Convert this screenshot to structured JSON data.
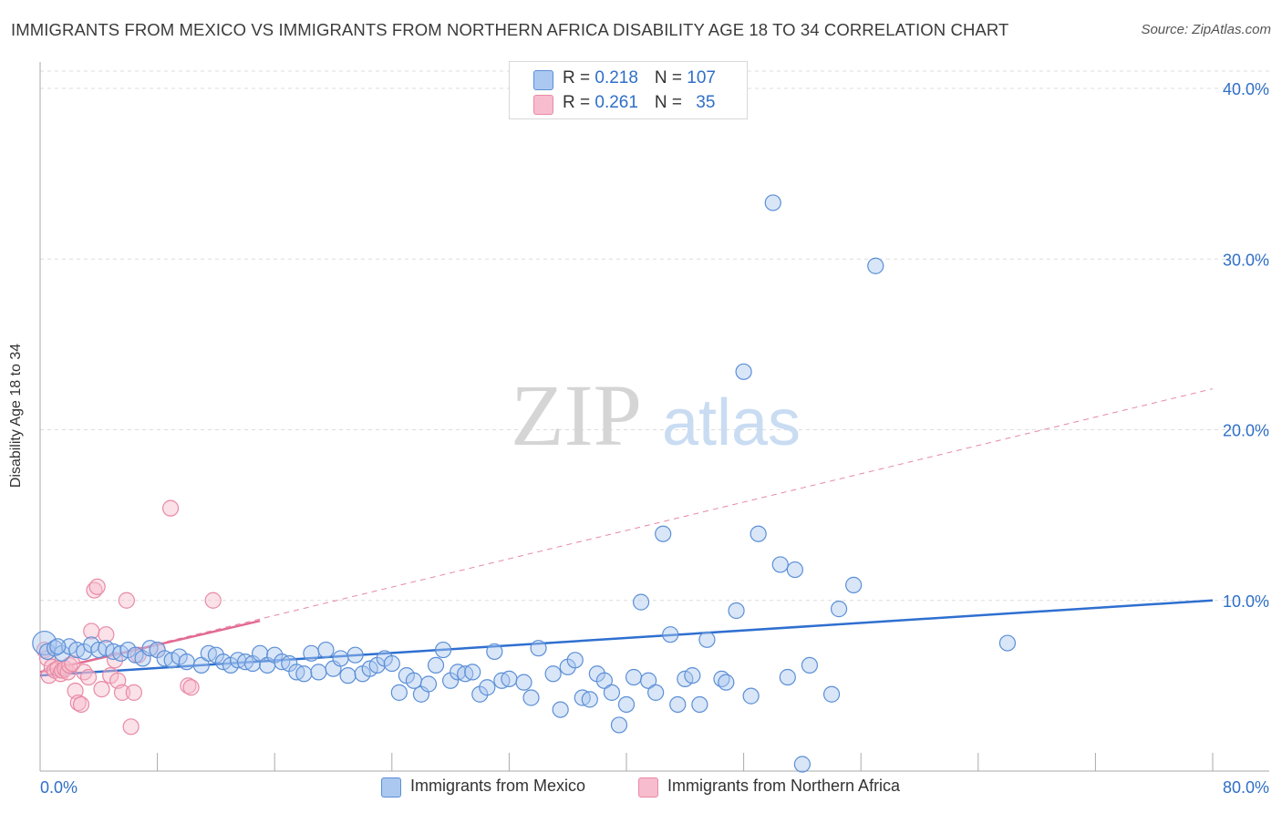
{
  "title": "IMMIGRANTS FROM MEXICO VS IMMIGRANTS FROM NORTHERN AFRICA DISABILITY AGE 18 TO 34 CORRELATION CHART",
  "source": "Source: ZipAtlas.com",
  "watermark": {
    "zip": "ZIP",
    "atlas": "atlas"
  },
  "legend": {
    "rows": [
      {
        "r_label": "R = ",
        "r_value": "0.218",
        "n_label": "N = ",
        "n_value": "107"
      },
      {
        "r_label": "R = ",
        "r_value": "0.261",
        "n_label": "N = ",
        "n_value": "35"
      }
    ]
  },
  "colors": {
    "mexico_fill": "#aac8f0",
    "mexico_stroke": "#5b8fd6",
    "mexico_line": "#2f6fd0",
    "africa_fill": "#f7bccd",
    "africa_stroke": "#e88aa6",
    "africa_line": "#e26a92",
    "axis_text": "#2f6fc7",
    "grid": "#dddddd"
  },
  "chart_data": {
    "type": "scatter",
    "title": "IMMIGRANTS FROM MEXICO VS IMMIGRANTS FROM NORTHERN AFRICA DISABILITY AGE 18 TO 34 CORRELATION CHART",
    "xlabel": "",
    "ylabel": "Disability Age 18 to 34",
    "xlim": [
      0,
      80
    ],
    "ylim": [
      0,
      40
    ],
    "x_tick_labels": [
      "0.0%",
      "80.0%"
    ],
    "y_ticks": [
      10,
      20,
      30,
      40
    ],
    "y_tick_labels": [
      "10.0%",
      "20.0%",
      "30.0%",
      "40.0%"
    ],
    "grid": true,
    "series": [
      {
        "name": "Immigrants from Mexico",
        "r": 0.218,
        "n": 107,
        "trend": {
          "x": [
            0,
            80
          ],
          "y": [
            5.6,
            10.0
          ],
          "style": "solid"
        },
        "points": [
          [
            0.3,
            7.5
          ],
          [
            0.5,
            7.0
          ],
          [
            1.0,
            7.2
          ],
          [
            1.5,
            6.9
          ],
          [
            2.0,
            7.3
          ],
          [
            2.5,
            7.1
          ],
          [
            3.0,
            7.0
          ],
          [
            3.5,
            7.4
          ],
          [
            4.0,
            7.1
          ],
          [
            4.5,
            7.2
          ],
          [
            5.0,
            7.0
          ],
          [
            5.5,
            6.9
          ],
          [
            6.0,
            7.1
          ],
          [
            6.5,
            6.8
          ],
          [
            7.0,
            6.6
          ],
          [
            7.5,
            7.2
          ],
          [
            8.0,
            7.1
          ],
          [
            8.5,
            6.6
          ],
          [
            9.0,
            6.5
          ],
          [
            9.5,
            6.7
          ],
          [
            10.0,
            6.4
          ],
          [
            11.0,
            6.2
          ],
          [
            11.5,
            6.9
          ],
          [
            12.0,
            6.8
          ],
          [
            12.5,
            6.4
          ],
          [
            13.0,
            6.2
          ],
          [
            13.5,
            6.5
          ],
          [
            14.0,
            6.4
          ],
          [
            14.5,
            6.3
          ],
          [
            15.0,
            6.9
          ],
          [
            15.5,
            6.2
          ],
          [
            16.0,
            6.8
          ],
          [
            16.5,
            6.4
          ],
          [
            17.0,
            6.3
          ],
          [
            17.5,
            5.8
          ],
          [
            18.0,
            5.7
          ],
          [
            18.5,
            6.9
          ],
          [
            19.0,
            5.8
          ],
          [
            19.5,
            7.1
          ],
          [
            20.0,
            6.0
          ],
          [
            20.5,
            6.6
          ],
          [
            21.0,
            5.6
          ],
          [
            21.5,
            6.8
          ],
          [
            22.0,
            5.7
          ],
          [
            22.5,
            6.0
          ],
          [
            23.0,
            6.2
          ],
          [
            23.5,
            6.6
          ],
          [
            24.0,
            6.3
          ],
          [
            24.5,
            4.6
          ],
          [
            25.0,
            5.6
          ],
          [
            25.5,
            5.3
          ],
          [
            26.0,
            4.5
          ],
          [
            26.5,
            5.1
          ],
          [
            27.0,
            6.2
          ],
          [
            27.5,
            7.1
          ],
          [
            28.0,
            5.3
          ],
          [
            28.5,
            5.8
          ],
          [
            29.0,
            5.7
          ],
          [
            29.5,
            5.8
          ],
          [
            30.0,
            4.5
          ],
          [
            30.5,
            4.9
          ],
          [
            31.0,
            7.0
          ],
          [
            31.5,
            5.3
          ],
          [
            32.0,
            5.4
          ],
          [
            33.0,
            5.2
          ],
          [
            33.5,
            4.3
          ],
          [
            34.0,
            7.2
          ],
          [
            35.0,
            5.7
          ],
          [
            35.5,
            3.6
          ],
          [
            36.0,
            6.1
          ],
          [
            36.5,
            6.5
          ],
          [
            37.0,
            4.3
          ],
          [
            37.5,
            4.2
          ],
          [
            38.0,
            5.7
          ],
          [
            38.5,
            5.3
          ],
          [
            39.0,
            4.6
          ],
          [
            39.5,
            2.7
          ],
          [
            40.0,
            3.9
          ],
          [
            40.5,
            5.5
          ],
          [
            41.0,
            9.9
          ],
          [
            41.5,
            5.3
          ],
          [
            42.0,
            4.6
          ],
          [
            42.5,
            13.9
          ],
          [
            43.0,
            8.0
          ],
          [
            43.5,
            3.9
          ],
          [
            44.0,
            5.4
          ],
          [
            44.5,
            5.6
          ],
          [
            45.0,
            3.9
          ],
          [
            45.5,
            7.7
          ],
          [
            46.5,
            5.4
          ],
          [
            46.8,
            5.2
          ],
          [
            47.5,
            9.4
          ],
          [
            48.0,
            23.4
          ],
          [
            48.5,
            4.4
          ],
          [
            49.0,
            13.9
          ],
          [
            50.5,
            12.1
          ],
          [
            51.0,
            5.5
          ],
          [
            51.5,
            11.8
          ],
          [
            52.0,
            0.4
          ],
          [
            50.0,
            33.3
          ],
          [
            52.5,
            6.2
          ],
          [
            54.0,
            4.5
          ],
          [
            54.5,
            9.5
          ],
          [
            55.5,
            10.9
          ],
          [
            57.0,
            29.6
          ],
          [
            66.0,
            7.5
          ],
          [
            1.2,
            7.3
          ]
        ]
      },
      {
        "name": "Immigrants from Northern Africa",
        "r": 0.261,
        "n": 35,
        "trend_solid": {
          "x": [
            0,
            15
          ],
          "y": [
            5.8,
            8.8
          ]
        },
        "trend_dashed": {
          "x": [
            0,
            80
          ],
          "y": [
            5.8,
            22.4
          ]
        },
        "points": [
          [
            0.3,
            7.1
          ],
          [
            0.5,
            6.6
          ],
          [
            0.6,
            5.6
          ],
          [
            0.8,
            6.1
          ],
          [
            1.0,
            5.9
          ],
          [
            1.2,
            6.0
          ],
          [
            1.4,
            5.7
          ],
          [
            1.5,
            5.9
          ],
          [
            1.7,
            6.0
          ],
          [
            1.9,
            5.8
          ],
          [
            2.0,
            6.2
          ],
          [
            2.2,
            6.3
          ],
          [
            2.4,
            4.7
          ],
          [
            2.6,
            4.0
          ],
          [
            2.8,
            3.9
          ],
          [
            3.0,
            5.8
          ],
          [
            3.3,
            5.5
          ],
          [
            3.5,
            8.2
          ],
          [
            3.7,
            10.6
          ],
          [
            3.9,
            10.8
          ],
          [
            4.2,
            4.8
          ],
          [
            4.5,
            8.0
          ],
          [
            4.8,
            5.6
          ],
          [
            5.1,
            6.5
          ],
          [
            5.3,
            5.3
          ],
          [
            5.6,
            4.6
          ],
          [
            5.9,
            10.0
          ],
          [
            6.2,
            2.6
          ],
          [
            6.4,
            4.6
          ],
          [
            6.7,
            6.8
          ],
          [
            8.0,
            7.1
          ],
          [
            8.9,
            15.4
          ],
          [
            10.1,
            5.0
          ],
          [
            10.3,
            4.9
          ],
          [
            11.8,
            10.0
          ]
        ]
      }
    ]
  },
  "bottom_legend": [
    "Immigrants from Mexico",
    "Immigrants from Northern Africa"
  ]
}
